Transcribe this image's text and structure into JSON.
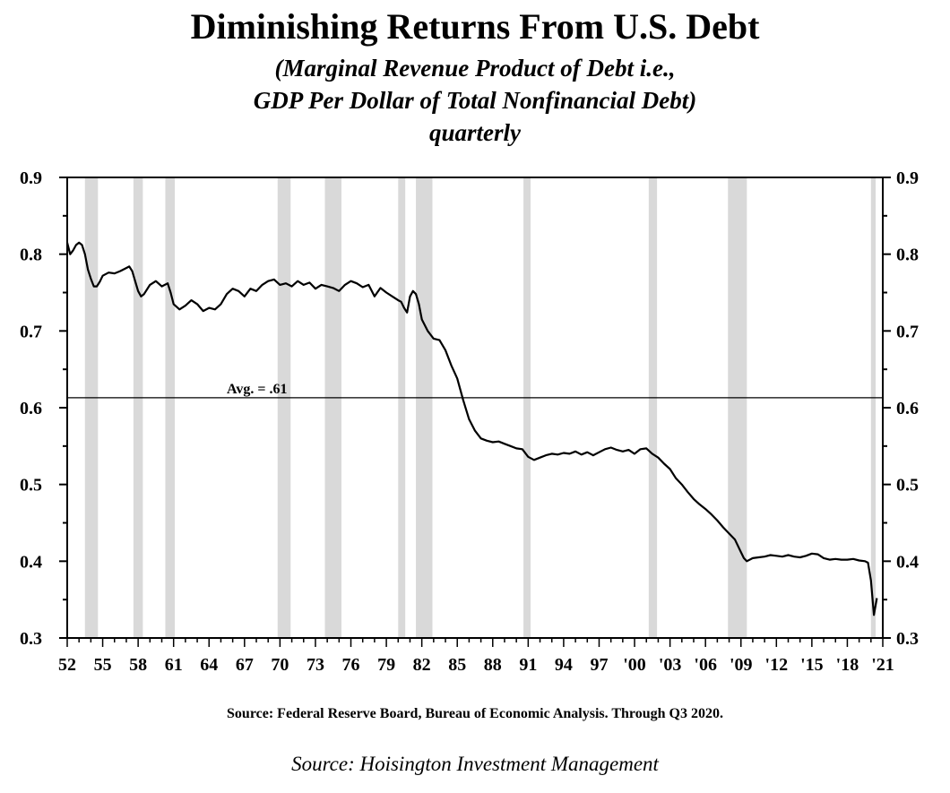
{
  "chart_data": {
    "type": "line",
    "title": "Diminishing Returns From U.S. Debt",
    "subtitle_lines": [
      "(Marginal Revenue Product of Debt i.e.,",
      "GDP Per Dollar of Total Nonfinancial Debt)",
      "quarterly"
    ],
    "xlabel": "",
    "ylabel": "",
    "xlim": [
      1952,
      2021
    ],
    "ylim": [
      0.3,
      0.9
    ],
    "y_ticks": [
      0.9,
      0.8,
      0.7,
      0.6,
      0.5,
      0.4,
      0.3
    ],
    "y_tick_labels": [
      "0.9",
      "0.8",
      "0.7",
      "0.6",
      "0.5",
      "0.4",
      "0.3"
    ],
    "x_ticks": [
      1952,
      1955,
      1958,
      1961,
      1964,
      1967,
      1970,
      1973,
      1976,
      1979,
      1982,
      1985,
      1988,
      1991,
      1994,
      1997,
      2000,
      2003,
      2006,
      2009,
      2012,
      2015,
      2018,
      2021
    ],
    "x_tick_labels": [
      "52",
      "55",
      "58",
      "61",
      "64",
      "67",
      "70",
      "73",
      "76",
      "79",
      "82",
      "85",
      "88",
      "91",
      "94",
      "97",
      "'00",
      "'03",
      "'06",
      "'09",
      "'12",
      "'15",
      "'18",
      "'21"
    ],
    "recessions": [
      [
        1953.5,
        1954.6
      ],
      [
        1957.6,
        1958.4
      ],
      [
        1960.3,
        1961.1
      ],
      [
        1969.8,
        1970.9
      ],
      [
        1973.8,
        1975.2
      ],
      [
        1980.0,
        1980.6
      ],
      [
        1981.5,
        1982.9
      ],
      [
        1990.6,
        1991.2
      ],
      [
        2001.2,
        2001.9
      ],
      [
        2007.9,
        2009.5
      ],
      [
        2020.0,
        2020.4
      ]
    ],
    "average_line": {
      "value": 0.613,
      "label": "Avg. = .61"
    },
    "series": [
      {
        "name": "GDP per dollar of total nonfinancial debt",
        "x": [
          1952.0,
          1952.25,
          1952.5,
          1952.75,
          1953.0,
          1953.25,
          1953.5,
          1953.75,
          1954.0,
          1954.25,
          1954.5,
          1954.75,
          1955.0,
          1955.5,
          1956.0,
          1956.5,
          1957.0,
          1957.25,
          1957.5,
          1957.75,
          1958.0,
          1958.25,
          1958.5,
          1959.0,
          1959.5,
          1960.0,
          1960.5,
          1960.75,
          1961.0,
          1961.5,
          1962.0,
          1962.5,
          1963.0,
          1963.5,
          1964.0,
          1964.5,
          1965.0,
          1965.5,
          1966.0,
          1966.5,
          1967.0,
          1967.5,
          1968.0,
          1968.5,
          1969.0,
          1969.5,
          1970.0,
          1970.5,
          1971.0,
          1971.5,
          1972.0,
          1972.5,
          1973.0,
          1973.5,
          1974.0,
          1974.5,
          1975.0,
          1975.5,
          1976.0,
          1976.5,
          1977.0,
          1977.5,
          1978.0,
          1978.5,
          1979.0,
          1979.5,
          1980.0,
          1980.25,
          1980.5,
          1980.75,
          1981.0,
          1981.25,
          1981.5,
          1981.75,
          1982.0,
          1982.5,
          1983.0,
          1983.5,
          1984.0,
          1984.5,
          1985.0,
          1985.5,
          1986.0,
          1986.5,
          1987.0,
          1987.5,
          1988.0,
          1988.5,
          1989.0,
          1989.5,
          1990.0,
          1990.5,
          1991.0,
          1991.5,
          1992.0,
          1992.5,
          1993.0,
          1993.5,
          1994.0,
          1994.5,
          1995.0,
          1995.5,
          1996.0,
          1996.5,
          1997.0,
          1997.5,
          1998.0,
          1998.5,
          1999.0,
          1999.5,
          2000.0,
          2000.5,
          2001.0,
          2001.5,
          2002.0,
          2002.5,
          2003.0,
          2003.5,
          2004.0,
          2004.5,
          2005.0,
          2005.5,
          2006.0,
          2006.5,
          2007.0,
          2007.5,
          2008.0,
          2008.5,
          2009.0,
          2009.25,
          2009.5,
          2010.0,
          2010.5,
          2011.0,
          2011.5,
          2012.0,
          2012.5,
          2013.0,
          2013.5,
          2014.0,
          2014.5,
          2015.0,
          2015.5,
          2016.0,
          2016.5,
          2017.0,
          2017.5,
          2018.0,
          2018.5,
          2019.0,
          2019.5,
          2019.75,
          2020.0,
          2020.25,
          2020.5
        ],
        "values": [
          0.815,
          0.8,
          0.805,
          0.812,
          0.815,
          0.812,
          0.8,
          0.78,
          0.768,
          0.758,
          0.758,
          0.764,
          0.772,
          0.776,
          0.775,
          0.778,
          0.782,
          0.784,
          0.778,
          0.765,
          0.752,
          0.745,
          0.748,
          0.76,
          0.765,
          0.758,
          0.762,
          0.75,
          0.735,
          0.728,
          0.733,
          0.74,
          0.735,
          0.726,
          0.73,
          0.728,
          0.735,
          0.748,
          0.755,
          0.752,
          0.745,
          0.755,
          0.752,
          0.76,
          0.765,
          0.767,
          0.76,
          0.762,
          0.758,
          0.765,
          0.76,
          0.763,
          0.755,
          0.76,
          0.758,
          0.756,
          0.752,
          0.76,
          0.765,
          0.762,
          0.757,
          0.76,
          0.745,
          0.756,
          0.75,
          0.745,
          0.74,
          0.738,
          0.73,
          0.724,
          0.745,
          0.752,
          0.748,
          0.735,
          0.715,
          0.7,
          0.69,
          0.688,
          0.675,
          0.655,
          0.638,
          0.61,
          0.585,
          0.57,
          0.56,
          0.557,
          0.555,
          0.556,
          0.553,
          0.55,
          0.547,
          0.546,
          0.536,
          0.532,
          0.535,
          0.538,
          0.54,
          0.539,
          0.541,
          0.54,
          0.543,
          0.539,
          0.542,
          0.538,
          0.542,
          0.546,
          0.548,
          0.545,
          0.543,
          0.545,
          0.54,
          0.546,
          0.547,
          0.54,
          0.535,
          0.527,
          0.52,
          0.508,
          0.5,
          0.49,
          0.481,
          0.474,
          0.468,
          0.461,
          0.453,
          0.444,
          0.436,
          0.428,
          0.412,
          0.404,
          0.4,
          0.404,
          0.405,
          0.406,
          0.408,
          0.407,
          0.406,
          0.408,
          0.406,
          0.405,
          0.407,
          0.41,
          0.409,
          0.404,
          0.402,
          0.403,
          0.402,
          0.402,
          0.403,
          0.401,
          0.4,
          0.398,
          0.375,
          0.33,
          0.352
        ]
      }
    ]
  },
  "source_line": "Source:  Federal Reserve Board, Bureau of Economic Analysis.  Through Q3 2020.",
  "credit_line": "Source: Hoisington Investment Management",
  "colors": {
    "line": "#000000",
    "recession": "#d9d9d9",
    "axis": "#000000"
  }
}
